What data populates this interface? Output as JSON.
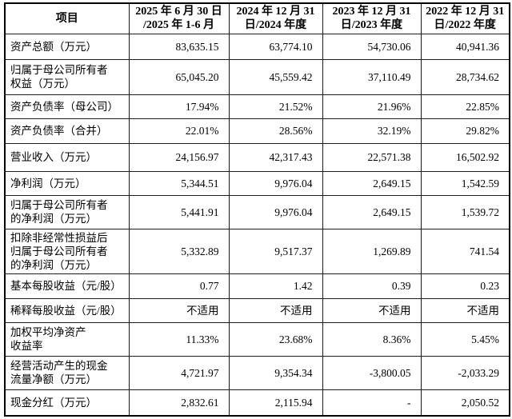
{
  "table": {
    "header": {
      "item": "项目",
      "periods": [
        "2025 年 6 月 30 日\n/2025 年 1-6 月",
        "2024 年 12 月 31\n日/2024 年度",
        "2023 年 12 月 31\n日/2023 年度",
        "2022 年 12 月 31\n日/2022 年度"
      ]
    },
    "rows": [
      {
        "label": "资产总额（万元）",
        "values": [
          "83,635.15",
          "63,774.10",
          "54,730.06",
          "40,941.36"
        ]
      },
      {
        "label": "归属于母公司所有者\n权益（万元）",
        "values": [
          "65,045.20",
          "45,559.42",
          "37,110.49",
          "28,734.62"
        ]
      },
      {
        "label": "资产负债率（母公司）",
        "values": [
          "17.94%",
          "21.52%",
          "21.96%",
          "22.85%"
        ]
      },
      {
        "label": "资产负债率（合并）",
        "values": [
          "22.01%",
          "28.56%",
          "32.19%",
          "29.82%"
        ]
      },
      {
        "label": "营业收入（万元）",
        "values": [
          "24,156.97",
          "42,317.43",
          "22,571.38",
          "16,502.92"
        ]
      },
      {
        "label": "净利润（万元）",
        "values": [
          "5,344.51",
          "9,976.04",
          "2,649.15",
          "1,542.59"
        ]
      },
      {
        "label": "归属于母公司所有者\n的净利润（万元）",
        "values": [
          "5,441.91",
          "9,976.04",
          "2,649.15",
          "1,539.72"
        ]
      },
      {
        "label": "扣除非经常性损益后\n归属于母公司所有者\n的净利润（万元）",
        "values": [
          "5,332.89",
          "9,517.37",
          "1,269.89",
          "741.54"
        ]
      },
      {
        "label": "基本每股收益（元/股）",
        "values": [
          "0.77",
          "1.42",
          "0.39",
          "0.23"
        ]
      },
      {
        "label": "稀释每股收益（元/股）",
        "values": [
          "不适用",
          "不适用",
          "不适用",
          "不适用"
        ]
      },
      {
        "label": "加权平均净资产\n收益率",
        "values": [
          "11.33%",
          "23.68%",
          "8.36%",
          "5.45%"
        ]
      },
      {
        "label": "经营活动产生的现金\n流量净额（万元）",
        "values": [
          "4,721.97",
          "9,354.34",
          "-3,800.05",
          "-2,033.29"
        ]
      },
      {
        "label": "现金分红（万元）",
        "values": [
          "2,832.61",
          "2,115.94",
          "-",
          "2,050.52"
        ]
      }
    ]
  }
}
